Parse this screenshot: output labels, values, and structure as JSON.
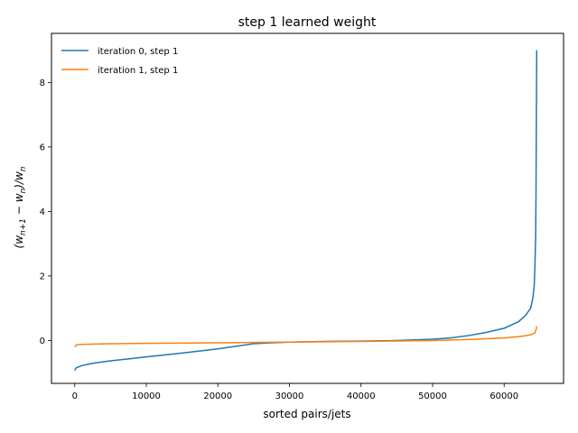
{
  "chart_data": {
    "type": "line",
    "title": "step 1 learned weight",
    "xlabel": "sorted pairs/jets",
    "ylabel": "(w_{n+1} - w_n)/w_n",
    "xlim": [
      -3250,
      68300
    ],
    "ylim": [
      -1.33,
      9.52
    ],
    "xticks": [
      0,
      10000,
      20000,
      30000,
      40000,
      50000,
      60000
    ],
    "yticks": [
      0,
      2,
      4,
      6,
      8
    ],
    "grid": false,
    "legend_position": "top-left",
    "series": [
      {
        "name": "iteration 0, step 1",
        "color": "#1f77b4",
        "points": [
          [
            0,
            -0.93
          ],
          [
            200,
            -0.85
          ],
          [
            500,
            -0.82
          ],
          [
            1000,
            -0.78
          ],
          [
            2000,
            -0.73
          ],
          [
            3000,
            -0.69
          ],
          [
            5000,
            -0.63
          ],
          [
            7500,
            -0.57
          ],
          [
            10000,
            -0.51
          ],
          [
            15000,
            -0.39
          ],
          [
            20000,
            -0.26
          ],
          [
            22500,
            -0.18
          ],
          [
            25000,
            -0.1
          ],
          [
            27500,
            -0.07
          ],
          [
            30000,
            -0.05
          ],
          [
            35000,
            -0.03
          ],
          [
            40000,
            -0.02
          ],
          [
            45000,
            0.0
          ],
          [
            50000,
            0.04
          ],
          [
            52500,
            0.08
          ],
          [
            55000,
            0.15
          ],
          [
            57500,
            0.25
          ],
          [
            60000,
            0.38
          ],
          [
            62000,
            0.58
          ],
          [
            63000,
            0.78
          ],
          [
            63700,
            1.0
          ],
          [
            64000,
            1.3
          ],
          [
            64200,
            1.7
          ],
          [
            64300,
            2.3
          ],
          [
            64400,
            3.2
          ],
          [
            64450,
            4.5
          ],
          [
            64500,
            6.8
          ],
          [
            64550,
            9.0
          ]
        ]
      },
      {
        "name": "iteration 1, step 1",
        "color": "#ff7f0e",
        "points": [
          [
            0,
            -0.2
          ],
          [
            100,
            -0.17
          ],
          [
            300,
            -0.13
          ],
          [
            1000,
            -0.12
          ],
          [
            5000,
            -0.1
          ],
          [
            10000,
            -0.09
          ],
          [
            20000,
            -0.07
          ],
          [
            30000,
            -0.05
          ],
          [
            40000,
            -0.03
          ],
          [
            50000,
            0.0
          ],
          [
            55000,
            0.03
          ],
          [
            60000,
            0.08
          ],
          [
            62500,
            0.13
          ],
          [
            63800,
            0.18
          ],
          [
            64300,
            0.24
          ],
          [
            64450,
            0.33
          ],
          [
            64550,
            0.44
          ]
        ]
      }
    ]
  }
}
